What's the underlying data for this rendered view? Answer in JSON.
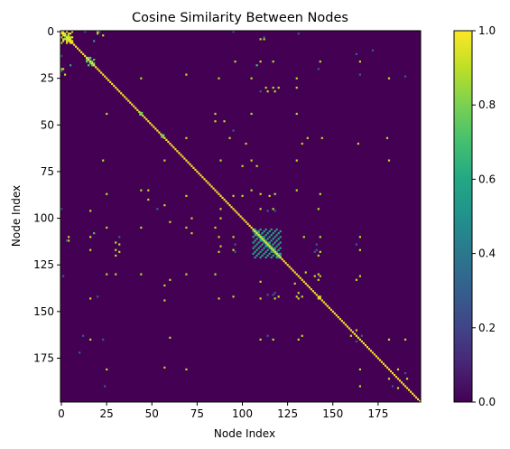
{
  "chart_data": {
    "type": "heatmap",
    "title": "Cosine Similarity Between Nodes",
    "xlabel": "Node Index",
    "ylabel": "Node Index",
    "n_nodes": 199,
    "x_ticks": [
      0,
      25,
      50,
      75,
      100,
      125,
      150,
      175
    ],
    "y_ticks": [
      0,
      25,
      50,
      75,
      100,
      125,
      150,
      175
    ],
    "colorbar": {
      "min": 0.0,
      "max": 1.0,
      "ticks": [
        "0.0",
        "0.2",
        "0.4",
        "0.6",
        "0.8",
        "1.0"
      ],
      "colormap": "viridis"
    },
    "background_value": 0.0,
    "diagonal_value": 1.0,
    "block_clusters": [
      {
        "start": 0,
        "end": 6,
        "value": 0.95
      },
      {
        "start": 14,
        "end": 18,
        "value": 0.75
      },
      {
        "start": 106,
        "end": 121,
        "value": 0.6
      }
    ],
    "highlight_cells": [
      {
        "x": 44,
        "y": 44,
        "value": 0.8
      },
      {
        "x": 56,
        "y": 56,
        "value": 0.8
      }
    ],
    "off_diagonal_pairs": [
      [
        0,
        20,
        0.9
      ],
      [
        0,
        21,
        0.5
      ],
      [
        2,
        23,
        0.9
      ],
      [
        4,
        110,
        0.9
      ],
      [
        4,
        112,
        0.9
      ],
      [
        16,
        96,
        0.9
      ],
      [
        16,
        110,
        0.9
      ],
      [
        16,
        117,
        0.9
      ],
      [
        16,
        143,
        0.9
      ],
      [
        16,
        165,
        0.9
      ],
      [
        18,
        5,
        0.6
      ],
      [
        18,
        108,
        0.7
      ],
      [
        25,
        44,
        0.9
      ],
      [
        25,
        87,
        0.9
      ],
      [
        25,
        105,
        0.9
      ],
      [
        25,
        130,
        0.9
      ],
      [
        25,
        181,
        0.9
      ],
      [
        30,
        113,
        0.9
      ],
      [
        30,
        117,
        0.9
      ],
      [
        30,
        120,
        0.9
      ],
      [
        30,
        130,
        0.9
      ],
      [
        32,
        110,
        0.3
      ],
      [
        32,
        114,
        0.9
      ],
      [
        32,
        118,
        0.9
      ],
      [
        44,
        105,
        0.9
      ],
      [
        44,
        130,
        0.9
      ],
      [
        48,
        85,
        0.9
      ],
      [
        48,
        90,
        0.9
      ],
      [
        57,
        69,
        0.9
      ],
      [
        57,
        93,
        0.9
      ],
      [
        57,
        136,
        0.9
      ],
      [
        57,
        144,
        0.9
      ],
      [
        57,
        180,
        0.9
      ],
      [
        60,
        133,
        0.9
      ],
      [
        60,
        164,
        0.9
      ],
      [
        69,
        23,
        0.9
      ],
      [
        69,
        88,
        0.9
      ],
      [
        69,
        105,
        0.9
      ],
      [
        69,
        130,
        0.9
      ],
      [
        69,
        181,
        0.9
      ],
      [
        72,
        100,
        0.9
      ],
      [
        72,
        108,
        0.9
      ],
      [
        85,
        44,
        0.9
      ],
      [
        85,
        105,
        0.9
      ],
      [
        85,
        130,
        0.9
      ],
      [
        87,
        110,
        0.9
      ],
      [
        87,
        118,
        0.9
      ],
      [
        87,
        143,
        0.9
      ],
      [
        88,
        95,
        0.9
      ],
      [
        88,
        100,
        0.9
      ],
      [
        88,
        115,
        0.9
      ],
      [
        95,
        53,
        0.3
      ],
      [
        95,
        110,
        0.9
      ],
      [
        95,
        117,
        0.9
      ],
      [
        95,
        142,
        0.9
      ],
      [
        96,
        114,
        0.3
      ],
      [
        96,
        118,
        0.3
      ],
      [
        102,
        60,
        0.9
      ],
      [
        110,
        134,
        0.9
      ],
      [
        110,
        165,
        0.9
      ],
      [
        114,
        141,
        0.3
      ],
      [
        114,
        163,
        0.3
      ],
      [
        117,
        141,
        0.3
      ],
      [
        117,
        165,
        0.9
      ],
      [
        118,
        140,
        0.3
      ],
      [
        120,
        142,
        0.9
      ],
      [
        129,
        135,
        0.9
      ],
      [
        130,
        142,
        0.9
      ],
      [
        131,
        140,
        0.9
      ],
      [
        131,
        165,
        0.9
      ],
      [
        133,
        142,
        0.9
      ],
      [
        133,
        163,
        0.9
      ],
      [
        143,
        110,
        0.9
      ],
      [
        143,
        118,
        0.9
      ],
      [
        143,
        131,
        0.9
      ],
      [
        143,
        142,
        0.9
      ],
      [
        160,
        163,
        0.9
      ],
      [
        163,
        166,
        0.3
      ],
      [
        165,
        190,
        0.9
      ],
      [
        165,
        181,
        0.9
      ],
      [
        2,
        3,
        0.6
      ],
      [
        3,
        5,
        0.9
      ],
      [
        1,
        4,
        0.9
      ],
      [
        181,
        186,
        0.9
      ],
      [
        186,
        191,
        0.9
      ],
      [
        183,
        190,
        0.3
      ],
      [
        10,
        172,
        0.3
      ],
      [
        13,
        0,
        0.3
      ],
      [
        16,
        15,
        0.3
      ],
      [
        131,
        1,
        0.3
      ],
      [
        142,
        20,
        0.3
      ],
      [
        165,
        23,
        0.3
      ],
      [
        190,
        24,
        0.3
      ],
      [
        20,
        1,
        0.9
      ],
      [
        95,
        0,
        0.3
      ],
      [
        112,
        3,
        0.3
      ],
      [
        163,
        12,
        0.3
      ]
    ]
  }
}
